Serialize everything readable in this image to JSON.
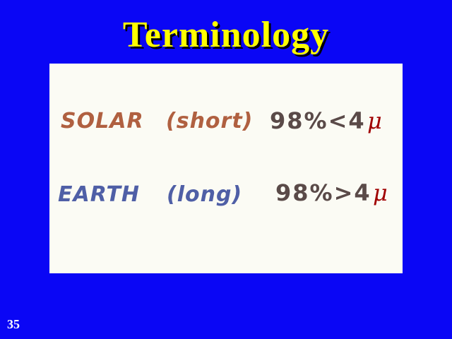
{
  "slide": {
    "title": "Terminology",
    "page_number": "35"
  },
  "rows": [
    {
      "name": "SOLAR",
      "qualifier": "(short)",
      "value": "98%<4",
      "unit": "μ",
      "color": "#b06040"
    },
    {
      "name": "EARTH",
      "qualifier": "(long)",
      "value": "98%>4",
      "unit": "μ",
      "color": "#4f5fa6"
    }
  ],
  "colors": {
    "background": "#0a06f5",
    "title": "#ffff00",
    "panel": "#fbfbf4",
    "value_text": "#5a4a48",
    "unit": "#a00000"
  }
}
